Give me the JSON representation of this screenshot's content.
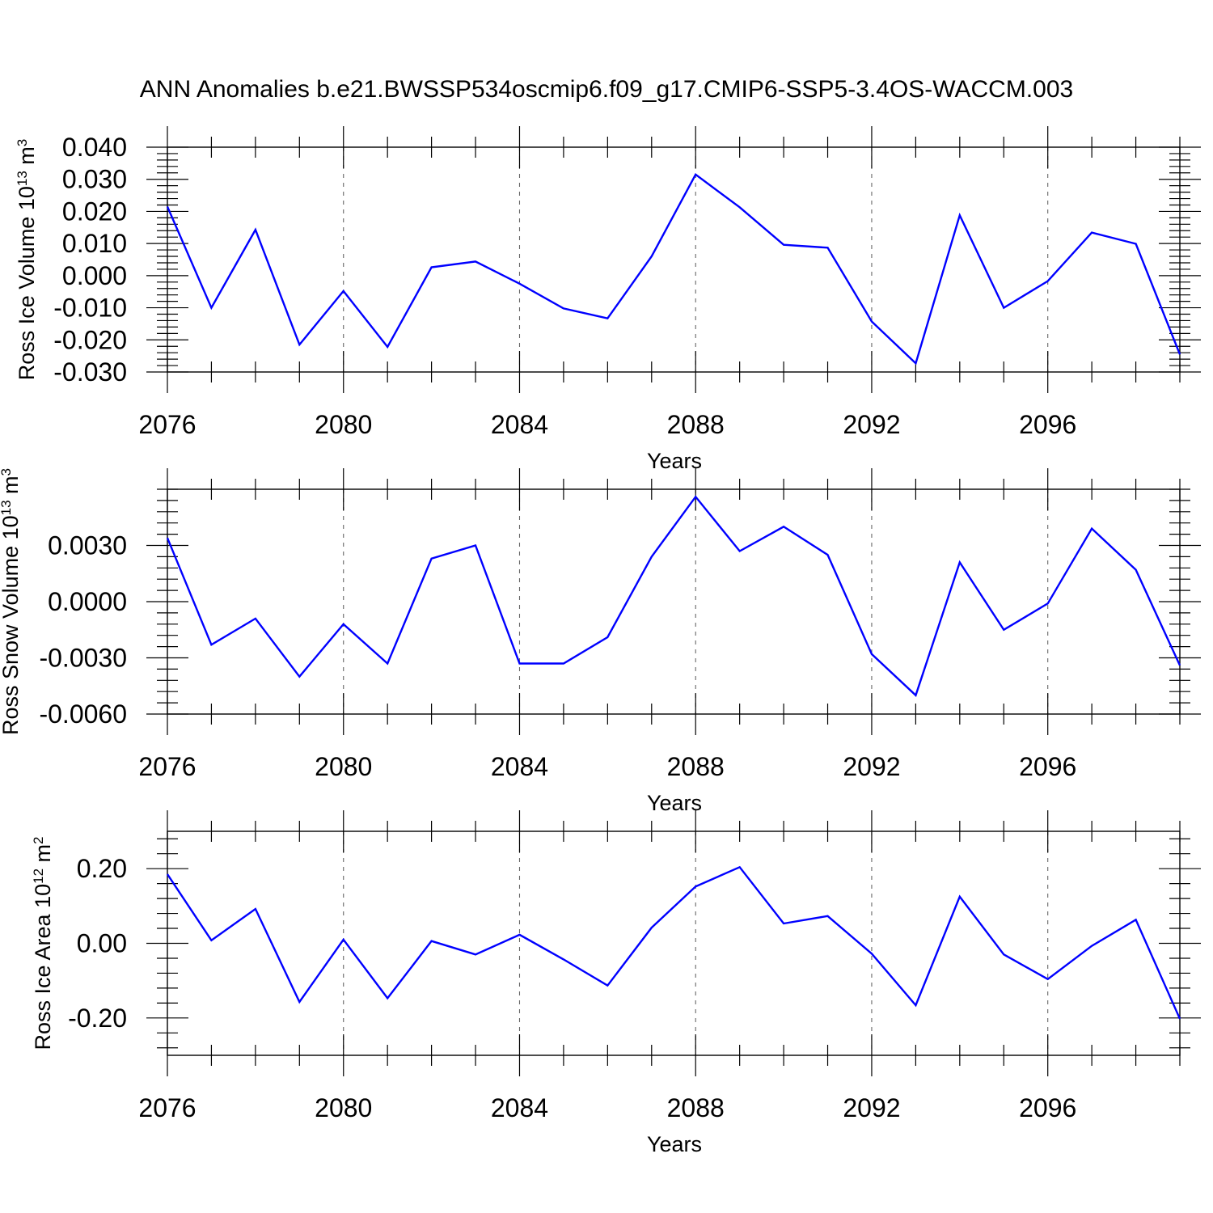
{
  "title": "ANN Anomalies b.e21.BWSSP534oscmip6.f09_g17.CMIP6-SSP5-3.4OS-WACCM.003",
  "line_color": "#0000ff",
  "chart_data": [
    {
      "type": "line",
      "ylabel_main": "Ross Ice Volume 10",
      "ylabel_exp": "13",
      "ylabel_unit": " m",
      "ylabel_unit_exp": "3",
      "xlabel": "Years",
      "xlim": [
        2076,
        2099
      ],
      "ylim": [
        -0.03,
        0.04
      ],
      "xticks": [
        2076,
        2080,
        2084,
        2088,
        2092,
        2096
      ],
      "xtick_labels": [
        "2076",
        "2080",
        "2084",
        "2088",
        "2092",
        "2096"
      ],
      "yticks": [
        -0.03,
        -0.02,
        -0.01,
        0.0,
        0.01,
        0.02,
        0.03,
        0.04
      ],
      "ytick_labels": [
        "-0.030",
        "-0.020",
        "-0.010",
        "0.000",
        "0.010",
        "0.020",
        "0.030",
        "0.040"
      ],
      "vgrid": [
        2080,
        2084,
        2088,
        2092,
        2096
      ],
      "x": [
        2076,
        2077,
        2078,
        2079,
        2080,
        2081,
        2082,
        2083,
        2084,
        2085,
        2086,
        2087,
        2088,
        2089,
        2090,
        2091,
        2092,
        2093,
        2094,
        2095,
        2096,
        2097,
        2098,
        2099
      ],
      "y": [
        0.0215,
        -0.01,
        0.0143,
        -0.0215,
        -0.0048,
        -0.0222,
        0.0026,
        0.0044,
        -0.0025,
        -0.0102,
        -0.0133,
        0.006,
        0.0315,
        0.0213,
        0.0096,
        0.0087,
        -0.0143,
        -0.0273,
        0.0188,
        -0.01,
        -0.0017,
        0.0134,
        0.0099,
        -0.0245
      ]
    },
    {
      "type": "line",
      "ylabel_main": "Ross Snow Volume 10",
      "ylabel_exp": "13",
      "ylabel_unit": " m",
      "ylabel_unit_exp": "3",
      "xlabel": "Years",
      "xlim": [
        2076,
        2099
      ],
      "ylim": [
        -0.006,
        0.006
      ],
      "xticks": [
        2076,
        2080,
        2084,
        2088,
        2092,
        2096
      ],
      "xtick_labels": [
        "2076",
        "2080",
        "2084",
        "2088",
        "2092",
        "2096"
      ],
      "yticks": [
        -0.006,
        -0.003,
        0.0,
        0.003
      ],
      "ytick_labels": [
        "-0.0060",
        "-0.0030",
        "0.0000",
        "0.0030"
      ],
      "vgrid": [
        2080,
        2084,
        2088,
        2092,
        2096
      ],
      "x": [
        2076,
        2077,
        2078,
        2079,
        2080,
        2081,
        2082,
        2083,
        2084,
        2085,
        2086,
        2087,
        2088,
        2089,
        2090,
        2091,
        2092,
        2093,
        2094,
        2095,
        2096,
        2097,
        2098,
        2099
      ],
      "y": [
        0.0034,
        -0.0023,
        -0.0009,
        -0.004,
        -0.0012,
        -0.0033,
        0.0023,
        0.003,
        -0.0033,
        -0.0033,
        -0.0019,
        0.0024,
        0.0056,
        0.0027,
        0.004,
        0.0025,
        -0.0028,
        -0.005,
        0.0021,
        -0.0015,
        -0.0001,
        0.0039,
        0.0017,
        -0.0034
      ]
    },
    {
      "type": "line",
      "ylabel_main": "Ross Ice Area 10",
      "ylabel_exp": "12",
      "ylabel_unit": " m",
      "ylabel_unit_exp": "2",
      "xlabel": "Years",
      "xlim": [
        2076,
        2099
      ],
      "ylim": [
        -0.3,
        0.3
      ],
      "xticks": [
        2076,
        2080,
        2084,
        2088,
        2092,
        2096
      ],
      "xtick_labels": [
        "2076",
        "2080",
        "2084",
        "2088",
        "2092",
        "2096"
      ],
      "yticks": [
        -0.2,
        0.0,
        0.2
      ],
      "ytick_labels": [
        "-0.20",
        "0.00",
        "0.20"
      ],
      "vgrid": [
        2080,
        2084,
        2088,
        2092,
        2096
      ],
      "x": [
        2076,
        2077,
        2078,
        2079,
        2080,
        2081,
        2082,
        2083,
        2084,
        2085,
        2086,
        2087,
        2088,
        2089,
        2090,
        2091,
        2092,
        2093,
        2094,
        2095,
        2096,
        2097,
        2098,
        2099
      ],
      "y": [
        0.185,
        0.008,
        0.092,
        -0.157,
        0.01,
        -0.147,
        0.006,
        -0.03,
        0.023,
        -0.043,
        -0.113,
        0.042,
        0.152,
        0.204,
        0.053,
        0.073,
        -0.028,
        -0.166,
        0.125,
        -0.03,
        -0.096,
        -0.007,
        0.063,
        -0.202
      ]
    }
  ]
}
